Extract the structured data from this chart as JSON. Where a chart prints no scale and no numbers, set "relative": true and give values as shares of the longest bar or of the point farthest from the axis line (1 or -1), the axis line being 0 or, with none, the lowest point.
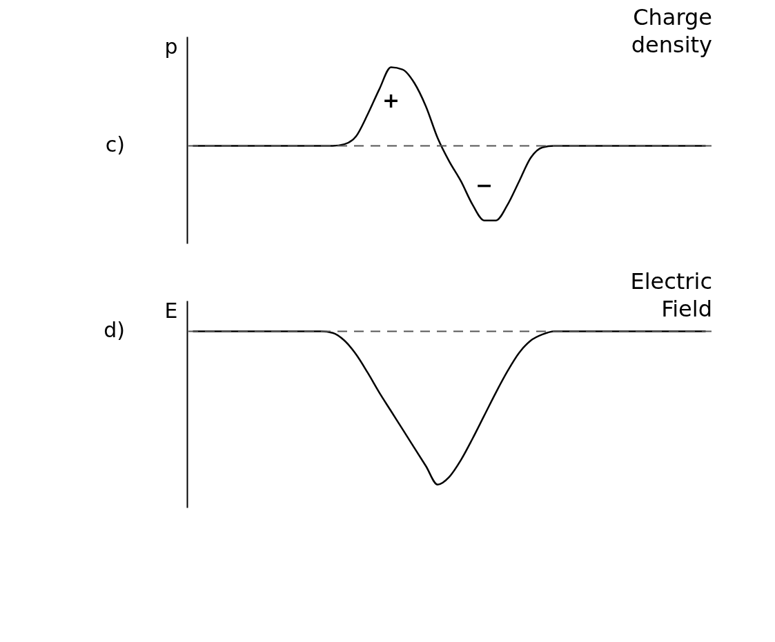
{
  "chart_data": [
    {
      "type": "line",
      "title": "Charge density",
      "ylabel": "p",
      "relative": true,
      "tick_labels": false,
      "line_style": "solid",
      "annotations": [
        "c)",
        "+",
        "−"
      ],
      "categories": [
        null,
        null,
        null,
        null,
        null,
        null,
        null,
        null,
        null,
        null,
        null,
        null,
        null,
        null,
        null,
        null,
        null,
        null,
        null,
        null,
        null,
        null,
        null,
        null,
        null,
        null,
        null,
        null,
        null,
        null,
        null,
        null,
        null,
        null,
        null,
        null,
        null,
        null,
        null,
        null,
        null,
        null,
        null,
        null,
        null
      ],
      "series": [
        {
          "color": "#000000",
          "values": [
            0,
            0,
            0,
            0,
            0,
            0,
            0,
            0,
            0,
            0,
            0,
            0,
            0,
            0.02,
            0.12,
            0.4,
            0.72,
            1,
            0.97,
            0.8,
            0.5,
            0.1,
            -0.2,
            -0.45,
            -0.75,
            -0.95,
            -0.95,
            -0.75,
            -0.45,
            -0.15,
            -0.02,
            0,
            0,
            0,
            0,
            0,
            0,
            0,
            0,
            0,
            0,
            0,
            0,
            0,
            0
          ]
        }
      ],
      "ref_lines": [
        {
          "axis": "y",
          "value": 0,
          "line_style": "dashed",
          "color": "#555555"
        }
      ]
    },
    {
      "type": "line",
      "title": "Electric Field",
      "ylabel": "E",
      "relative": true,
      "tick_labels": false,
      "line_style": "solid",
      "annotations": [
        "d)"
      ],
      "categories": [
        null,
        null,
        null,
        null,
        null,
        null,
        null,
        null,
        null,
        null,
        null,
        null,
        null,
        null,
        null,
        null,
        null,
        null,
        null,
        null,
        null,
        null,
        null,
        null,
        null,
        null,
        null,
        null,
        null,
        null,
        null,
        null,
        null,
        null,
        null,
        null,
        null,
        null,
        null,
        null,
        null,
        null,
        null,
        null,
        null
      ],
      "series": [
        {
          "color": "#000000",
          "values": [
            0,
            0,
            0,
            0,
            0,
            0,
            0,
            0,
            0,
            0,
            0,
            0,
            -0.01,
            -0.06,
            -0.15,
            -0.27,
            -0.4,
            -0.52,
            -0.64,
            -0.76,
            -0.88,
            -1,
            -0.95,
            -0.84,
            -0.7,
            -0.55,
            -0.4,
            -0.26,
            -0.14,
            -0.06,
            -0.02,
            0,
            0,
            0,
            0,
            0,
            0,
            0,
            0,
            0,
            0,
            0,
            0,
            0,
            0
          ]
        }
      ],
      "ref_lines": [
        {
          "axis": "y",
          "value": 0,
          "line_style": "dashed",
          "color": "#555555"
        }
      ]
    }
  ]
}
